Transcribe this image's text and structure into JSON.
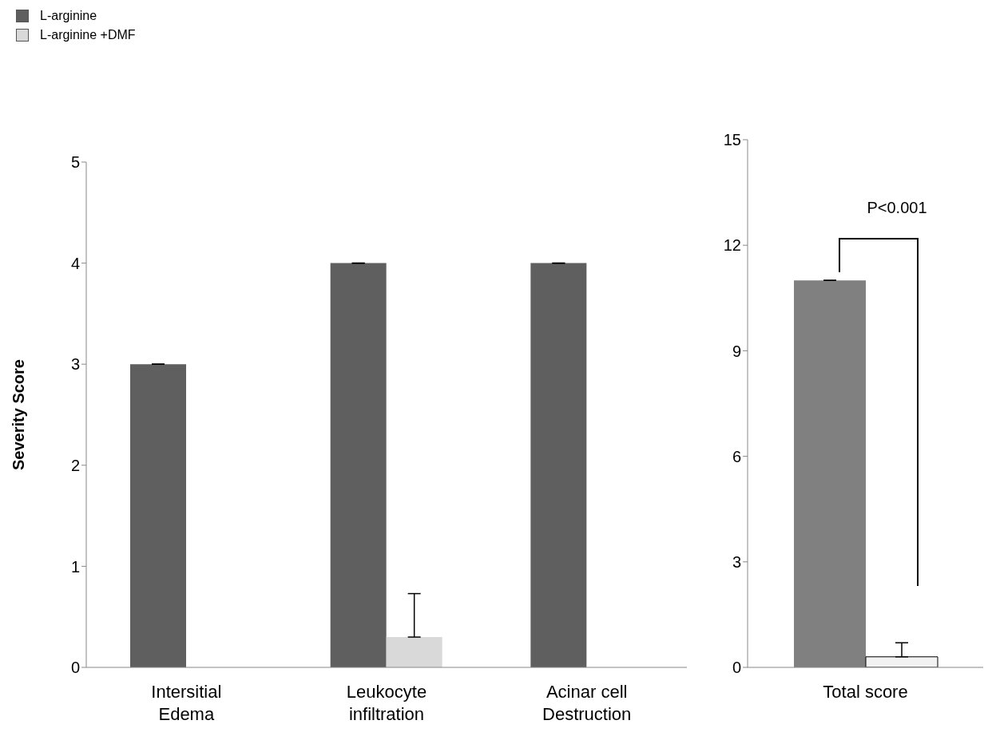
{
  "chart_data": [
    {
      "type": "bar",
      "ylabel": "Severity Score",
      "categories": [
        "Intersitial Edema",
        "Leukocyte infiltration",
        "Acinar cell Destruction"
      ],
      "series": [
        {
          "name": "L-arginine",
          "color": "#5f5f5f",
          "values": [
            3,
            4,
            4
          ],
          "errors": [
            [
              3,
              3
            ],
            [
              4,
              4
            ],
            [
              4,
              4
            ]
          ]
        },
        {
          "name": "L-arginine +DMF",
          "color": "#d9d9d9",
          "values": [
            0,
            0.3,
            0
          ],
          "errors": [
            null,
            [
              0.3,
              0.73
            ],
            null
          ]
        }
      ],
      "ylim": [
        0,
        5
      ],
      "yticks": [
        0,
        1,
        2,
        3,
        4,
        5
      ],
      "legend": "top left"
    },
    {
      "type": "bar",
      "categories": [
        "Total score"
      ],
      "series": [
        {
          "color": "#808080",
          "values": [
            11
          ],
          "errors": [
            [
              11,
              11
            ]
          ]
        },
        {
          "color": "#f2f2f2",
          "values": [
            0.3
          ],
          "errors": [
            [
              0.3,
              0.7
            ]
          ]
        }
      ],
      "ylim": [
        0,
        15
      ],
      "yticks": [
        0,
        3,
        6,
        9,
        12,
        15
      ],
      "annotations": [
        "P<0.001"
      ]
    }
  ]
}
